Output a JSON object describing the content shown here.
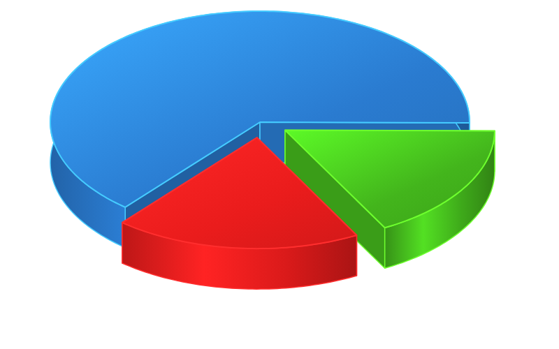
{
  "chart_data": {
    "type": "pie",
    "values": [
      64,
      17,
      19
    ],
    "colors": [
      "#2a7bd0",
      "#43b51c",
      "#ea1c1c"
    ]
  }
}
